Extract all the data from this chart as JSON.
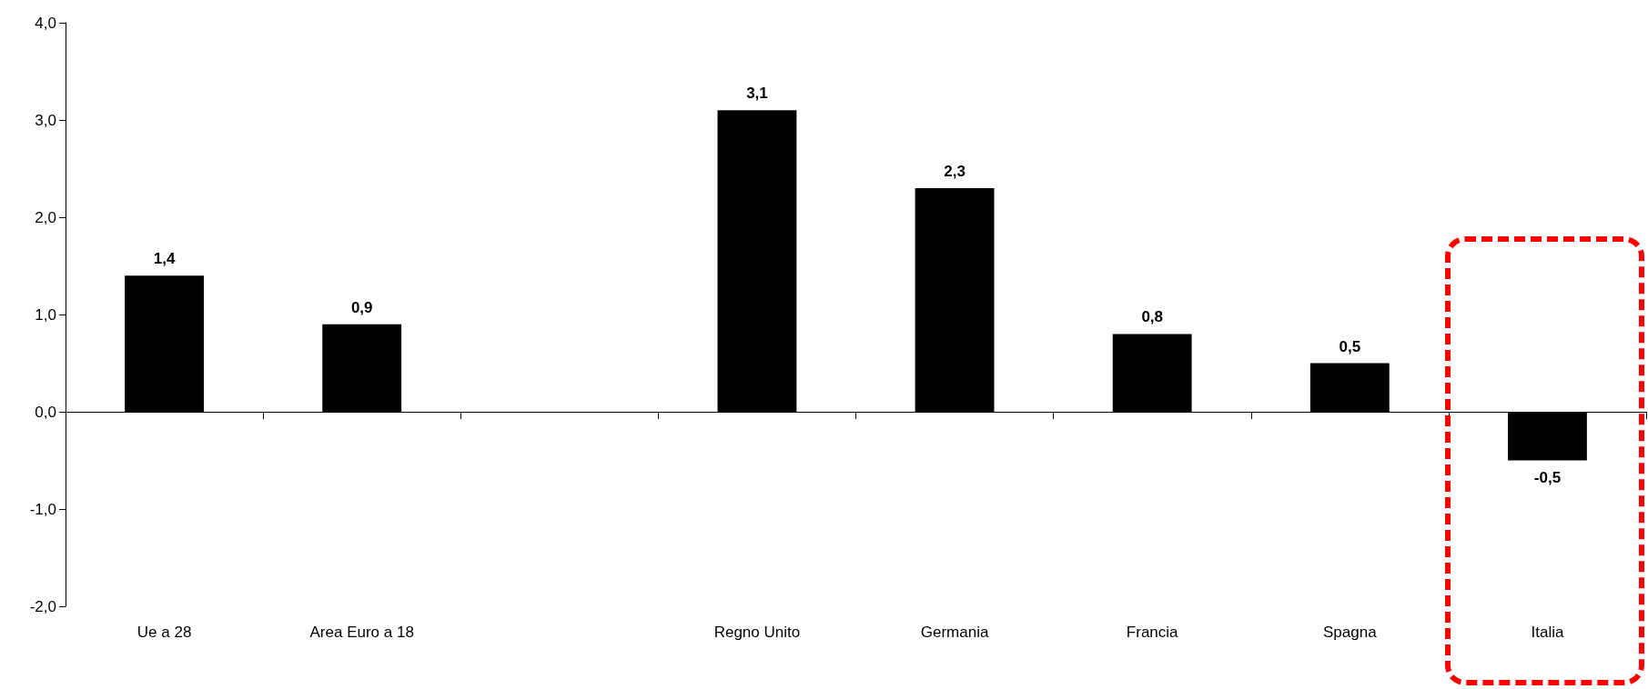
{
  "chart_data": {
    "type": "bar",
    "categories": [
      "Ue a 28",
      "Area Euro a 18",
      null,
      "Regno Unito",
      "Germania",
      "Francia",
      "Spagna",
      "Italia"
    ],
    "values": [
      1.4,
      0.9,
      null,
      3.1,
      2.3,
      0.8,
      0.5,
      -0.5
    ],
    "value_labels": [
      "1,4",
      "0,9",
      null,
      "3,1",
      "2,3",
      "0,8",
      "0,5",
      "-0,5"
    ],
    "color": "#000000",
    "ylim": [
      -2,
      4
    ],
    "yticks": [
      {
        "value": -2,
        "label": "-2,0"
      },
      {
        "value": -1,
        "label": "-1,0"
      },
      {
        "value": 0,
        "label": "0,0"
      },
      {
        "value": 1,
        "label": "1,0"
      },
      {
        "value": 2,
        "label": "2,0"
      },
      {
        "value": 3,
        "label": "3,0"
      },
      {
        "value": 4,
        "label": "4,0"
      }
    ]
  }
}
